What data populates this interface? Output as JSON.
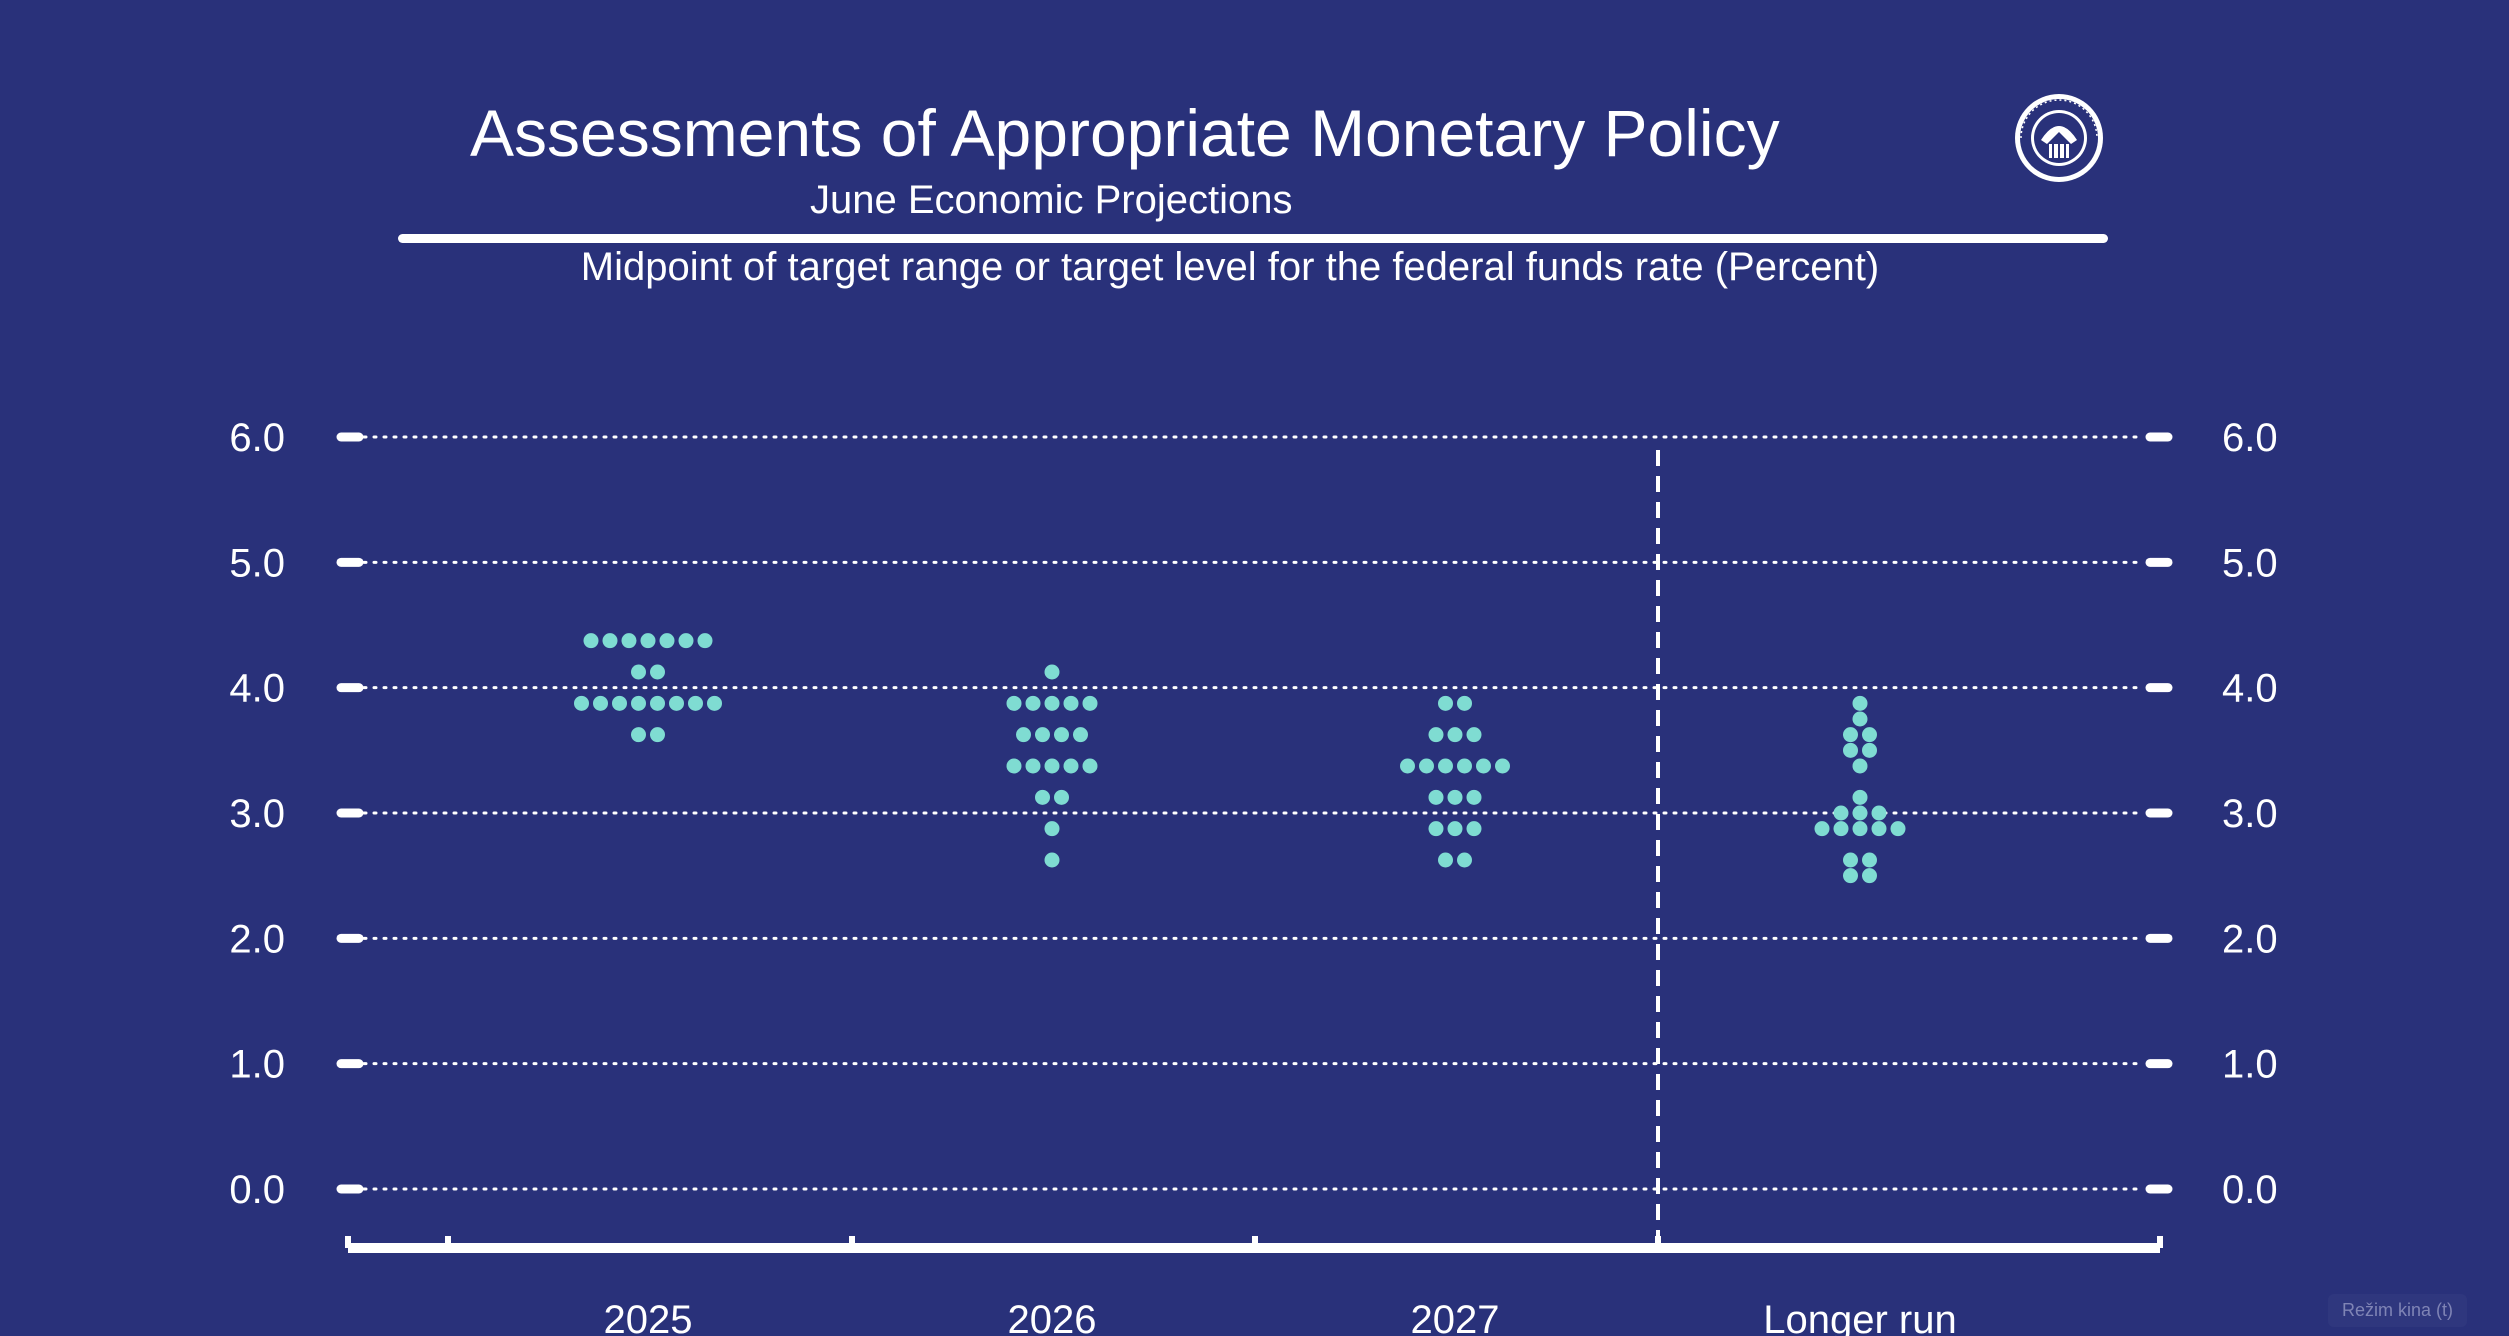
{
  "header": {
    "title": "Assessments of Appropriate Monetary Policy",
    "subtitle": "June Economic Projections",
    "chart_label": "Midpoint of target range or target level for the federal funds rate (Percent)"
  },
  "seal": {
    "icon": "federal-reserve-seal",
    "text": "UNITED STATES FEDERAL RESERVE SYSTEM"
  },
  "watermark": "Režim kina (t)",
  "colors": {
    "background": "#29317a",
    "dots": "#7fdcd2",
    "axis": "#ffffff"
  },
  "chart_data": {
    "type": "scatter",
    "title": "Assessments of Appropriate Monetary Policy",
    "subtitle": "June Economic Projections",
    "ylabel": "Midpoint of target range or target level for the federal funds rate (Percent)",
    "xlabel": "",
    "categories": [
      "2025",
      "2026",
      "2027",
      "Longer run"
    ],
    "ylim": [
      -0.4,
      6.0
    ],
    "yticks": [
      0.0,
      1.0,
      2.0,
      3.0,
      4.0,
      5.0,
      6.0
    ],
    "ytick_labels": [
      "0.0",
      "1.0",
      "2.0",
      "3.0",
      "4.0",
      "5.0",
      "6.0"
    ],
    "grid": true,
    "grid_style": "dotted",
    "legend": "none",
    "separator_before": "Longer run",
    "series": [
      {
        "category": "2025",
        "points": [
          {
            "y": 4.375,
            "count": 7
          },
          {
            "y": 4.125,
            "count": 2
          },
          {
            "y": 3.875,
            "count": 8
          },
          {
            "y": 3.625,
            "count": 2
          }
        ]
      },
      {
        "category": "2026",
        "points": [
          {
            "y": 4.125,
            "count": 1
          },
          {
            "y": 3.875,
            "count": 5
          },
          {
            "y": 3.625,
            "count": 4
          },
          {
            "y": 3.375,
            "count": 5
          },
          {
            "y": 3.125,
            "count": 2
          },
          {
            "y": 2.875,
            "count": 1
          },
          {
            "y": 2.625,
            "count": 1
          }
        ]
      },
      {
        "category": "2027",
        "points": [
          {
            "y": 3.875,
            "count": 2
          },
          {
            "y": 3.625,
            "count": 3
          },
          {
            "y": 3.375,
            "count": 6
          },
          {
            "y": 3.125,
            "count": 3
          },
          {
            "y": 2.875,
            "count": 3
          },
          {
            "y": 2.625,
            "count": 2
          }
        ]
      },
      {
        "category": "Longer run",
        "points": [
          {
            "y": 3.875,
            "count": 1
          },
          {
            "y": 3.75,
            "count": 1
          },
          {
            "y": 3.625,
            "count": 2
          },
          {
            "y": 3.5,
            "count": 2
          },
          {
            "y": 3.375,
            "count": 1
          },
          {
            "y": 3.125,
            "count": 1
          },
          {
            "y": 3.0,
            "count": 3
          },
          {
            "y": 2.875,
            "count": 5
          },
          {
            "y": 2.625,
            "count": 2
          },
          {
            "y": 2.5,
            "count": 2
          }
        ]
      }
    ]
  }
}
